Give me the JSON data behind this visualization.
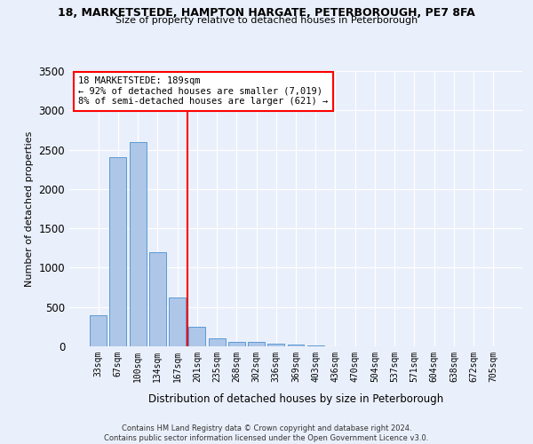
{
  "title1": "18, MARKETSTEDE, HAMPTON HARGATE, PETERBOROUGH, PE7 8FA",
  "title2": "Size of property relative to detached houses in Peterborough",
  "xlabel": "Distribution of detached houses by size in Peterborough",
  "ylabel": "Number of detached properties",
  "categories": [
    "33sqm",
    "67sqm",
    "100sqm",
    "134sqm",
    "167sqm",
    "201sqm",
    "235sqm",
    "268sqm",
    "302sqm",
    "336sqm",
    "369sqm",
    "403sqm",
    "436sqm",
    "470sqm",
    "504sqm",
    "537sqm",
    "571sqm",
    "604sqm",
    "638sqm",
    "672sqm",
    "705sqm"
  ],
  "values": [
    400,
    2400,
    2600,
    1200,
    620,
    250,
    100,
    60,
    55,
    30,
    20,
    15,
    5,
    3,
    2,
    1,
    1,
    1,
    0,
    0,
    0
  ],
  "bar_color": "#aec6e8",
  "bar_edge_color": "#5b9bd5",
  "vline_color": "red",
  "vline_index": 5.0,
  "annotation_text": "18 MARKETSTEDE: 189sqm\n← 92% of detached houses are smaller (7,019)\n8% of semi-detached houses are larger (621) →",
  "annotation_box_color": "white",
  "annotation_box_edge_color": "red",
  "ylim": [
    0,
    3500
  ],
  "yticks": [
    0,
    500,
    1000,
    1500,
    2000,
    2500,
    3000,
    3500
  ],
  "footer": "Contains HM Land Registry data © Crown copyright and database right 2024.\nContains public sector information licensed under the Open Government Licence v3.0.",
  "bg_color": "#eaf0fb",
  "grid_color": "#ffffff"
}
